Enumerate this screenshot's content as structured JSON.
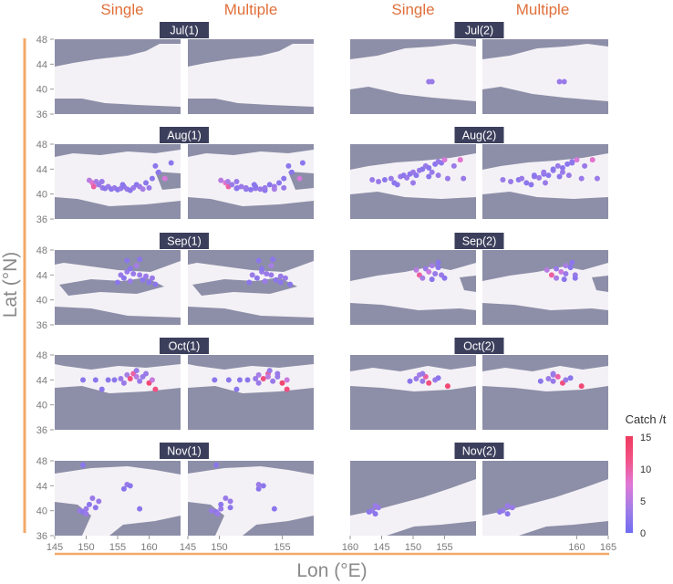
{
  "chart_data": {
    "type": "scatter",
    "column_headers": [
      "Single",
      "Multiple",
      "Single",
      "Multiple"
    ],
    "xlabel": "Lon (°E)",
    "ylabel": "Lat (°N)",
    "x_ticks": [
      "145",
      "150",
      "155",
      "160",
      "145",
      "150",
      "155",
      "160",
      "145",
      "150",
      "155",
      "160",
      "165"
    ],
    "y_ticks": [
      "48",
      "44",
      "40",
      "36"
    ],
    "xlim": [
      145,
      165
    ],
    "ylim": [
      36,
      48
    ],
    "colorbar": {
      "title": "Catch /t",
      "min": 0,
      "max": 15,
      "ticks": [
        "0",
        "5",
        "10",
        "15"
      ],
      "colors": [
        "#6f6cf2",
        "#a37ee6",
        "#e078d8",
        "#f25488",
        "#ef3a5e"
      ]
    },
    "mask_color": "#8d8fa8",
    "background_color": "#f4f1f6",
    "panels": [
      {
        "label": "Jul(1)",
        "points": []
      },
      {
        "label": "Jul(2)",
        "points": [
          [
            157.5,
            41.2,
            3
          ],
          [
            158.0,
            41.2,
            3
          ]
        ]
      },
      {
        "label": "Aug(1)",
        "points": [
          [
            150.5,
            42.2,
            5
          ],
          [
            151.0,
            41.8,
            8
          ],
          [
            151.2,
            41.2,
            10
          ],
          [
            151.6,
            42.0,
            4
          ],
          [
            152.0,
            41.5,
            3
          ],
          [
            152.6,
            41.0,
            3
          ],
          [
            153.0,
            40.9,
            2
          ],
          [
            153.5,
            41.2,
            3
          ],
          [
            154.0,
            40.8,
            2
          ],
          [
            154.5,
            41.0,
            3
          ],
          [
            155.0,
            40.7,
            2
          ],
          [
            155.5,
            40.9,
            3
          ],
          [
            156.0,
            41.2,
            2
          ],
          [
            156.5,
            40.8,
            3
          ],
          [
            157.0,
            40.6,
            2
          ],
          [
            157.5,
            41.0,
            3
          ],
          [
            158.0,
            41.5,
            2
          ],
          [
            158.5,
            41.2,
            3
          ],
          [
            159.0,
            40.8,
            4
          ],
          [
            159.5,
            41.8,
            2
          ],
          [
            160.0,
            41.0,
            3
          ],
          [
            160.5,
            42.5,
            2
          ],
          [
            161.5,
            43.5,
            2
          ],
          [
            162.5,
            42.5,
            7
          ],
          [
            163.5,
            45.0,
            2
          ],
          [
            161.0,
            44.5,
            2
          ],
          [
            152.5,
            42.0,
            3
          ],
          [
            155.8,
            41.5,
            2
          ]
        ]
      },
      {
        "label": "Aug(2)",
        "points": [
          [
            148.5,
            42.3,
            3
          ],
          [
            149.5,
            42.0,
            3
          ],
          [
            150.5,
            42.3,
            2
          ],
          [
            151.5,
            42.5,
            3
          ],
          [
            152.0,
            41.8,
            2
          ],
          [
            153.0,
            42.8,
            3
          ],
          [
            153.5,
            43.0,
            2
          ],
          [
            154.0,
            42.6,
            3
          ],
          [
            154.5,
            43.2,
            2
          ],
          [
            155.0,
            43.5,
            3
          ],
          [
            155.5,
            43.0,
            2
          ],
          [
            156.0,
            43.8,
            3
          ],
          [
            156.5,
            44.0,
            2
          ],
          [
            157.0,
            44.5,
            3
          ],
          [
            157.5,
            44.2,
            2
          ],
          [
            158.0,
            43.5,
            3
          ],
          [
            158.5,
            44.8,
            2
          ],
          [
            159.0,
            45.2,
            3
          ],
          [
            159.5,
            45.0,
            2
          ],
          [
            160.0,
            45.5,
            7
          ],
          [
            160.5,
            42.5,
            3
          ],
          [
            161.5,
            44.5,
            3
          ],
          [
            162.5,
            45.5,
            8
          ],
          [
            163.0,
            42.5,
            3
          ],
          [
            157.5,
            42.8,
            2
          ],
          [
            155.0,
            41.8,
            3
          ],
          [
            152.5,
            41.5,
            2
          ],
          [
            159.0,
            43.0,
            3
          ]
        ]
      },
      {
        "label": "Sep(1)",
        "points": [
          [
            155.5,
            44.0,
            3
          ],
          [
            156.0,
            43.5,
            2
          ],
          [
            156.5,
            44.5,
            3
          ],
          [
            157.0,
            45.0,
            2
          ],
          [
            157.5,
            44.2,
            3
          ],
          [
            158.0,
            45.5,
            4
          ],
          [
            158.5,
            44.0,
            3
          ],
          [
            159.0,
            43.2,
            2
          ],
          [
            159.5,
            43.8,
            3
          ],
          [
            160.0,
            42.8,
            2
          ],
          [
            160.5,
            43.5,
            3
          ],
          [
            161.0,
            42.5,
            2
          ],
          [
            156.5,
            46.3,
            2
          ],
          [
            158.5,
            46.5,
            2
          ],
          [
            157.0,
            43.0,
            3
          ],
          [
            155.0,
            42.8,
            2
          ]
        ]
      },
      {
        "label": "Sep(2)",
        "points": [
          [
            155.5,
            44.8,
            5
          ],
          [
            156.0,
            44.0,
            10
          ],
          [
            156.5,
            43.5,
            4
          ],
          [
            157.0,
            45.0,
            3
          ],
          [
            157.5,
            44.5,
            6
          ],
          [
            158.0,
            45.5,
            4
          ],
          [
            158.5,
            44.2,
            3
          ],
          [
            159.0,
            45.2,
            2
          ],
          [
            159.5,
            44.0,
            3
          ],
          [
            160.0,
            43.5,
            2
          ],
          [
            158.0,
            43.3,
            2
          ],
          [
            159.0,
            46.0,
            2
          ]
        ]
      },
      {
        "label": "Oct(1)",
        "points": [
          [
            149.5,
            44.0,
            2
          ],
          [
            151.5,
            44.0,
            2
          ],
          [
            152.5,
            42.5,
            2
          ],
          [
            153.5,
            44.0,
            2
          ],
          [
            154.5,
            44.0,
            2
          ],
          [
            155.5,
            44.2,
            3
          ],
          [
            156.5,
            44.8,
            4
          ],
          [
            157.0,
            44.2,
            12
          ],
          [
            157.5,
            45.0,
            10
          ],
          [
            158.0,
            44.5,
            5
          ],
          [
            158.5,
            43.8,
            3
          ],
          [
            159.0,
            44.5,
            3
          ],
          [
            159.5,
            45.0,
            3
          ],
          [
            160.0,
            43.5,
            13
          ],
          [
            160.5,
            44.0,
            6
          ],
          [
            161.0,
            42.5,
            12
          ],
          [
            158.0,
            45.5,
            3
          ],
          [
            156.0,
            43.5,
            3
          ]
        ]
      },
      {
        "label": "Oct(2)",
        "points": [
          [
            154.5,
            43.8,
            2
          ],
          [
            155.5,
            44.2,
            3
          ],
          [
            156.0,
            44.8,
            4
          ],
          [
            156.5,
            43.8,
            3
          ],
          [
            157.0,
            44.5,
            10
          ],
          [
            157.5,
            43.5,
            12
          ],
          [
            158.5,
            44.0,
            3
          ],
          [
            159.0,
            44.3,
            2
          ],
          [
            160.5,
            43.0,
            13
          ],
          [
            156.5,
            45.0,
            3
          ]
        ]
      },
      {
        "label": "Nov(1)",
        "points": [
          [
            149.0,
            40.0,
            3
          ],
          [
            149.5,
            39.8,
            2
          ],
          [
            150.0,
            40.3,
            3
          ],
          [
            150.5,
            41.0,
            2
          ],
          [
            151.0,
            42.0,
            3
          ],
          [
            151.5,
            40.5,
            2
          ],
          [
            152.0,
            41.5,
            3
          ],
          [
            149.5,
            47.3,
            2
          ],
          [
            156.0,
            43.5,
            2
          ],
          [
            156.5,
            44.2,
            3
          ],
          [
            157.0,
            44.0,
            2
          ],
          [
            158.5,
            40.3,
            2
          ],
          [
            150.0,
            39.5,
            3
          ]
        ]
      },
      {
        "label": "Nov(2)",
        "points": [
          [
            148.5,
            40.0,
            3
          ],
          [
            149.0,
            39.5,
            2
          ],
          [
            149.5,
            40.5,
            3
          ],
          [
            148.0,
            39.8,
            2
          ],
          [
            149.0,
            40.8,
            3
          ]
        ]
      }
    ]
  }
}
